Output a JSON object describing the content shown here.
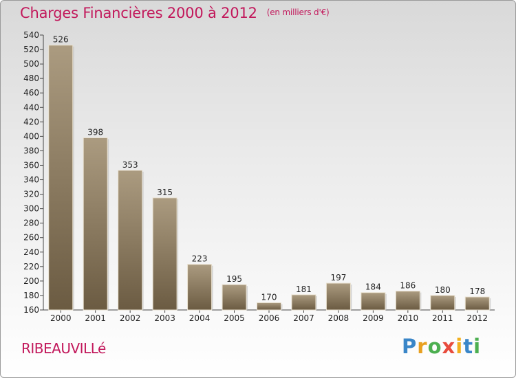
{
  "header": {
    "title": "Charges Financières 2000 à 2012",
    "subtitle": "(en milliers d'€)"
  },
  "footer": {
    "city": "RIBEAUVILLé",
    "logo_letters": [
      "P",
      "r",
      "o",
      "x",
      "i",
      "t",
      "i"
    ],
    "logo_colors": [
      "#3a86c8",
      "#e8a020",
      "#4caf50",
      "#e84c3d",
      "#f2b01e",
      "#3a86c8",
      "#4caf50"
    ]
  },
  "chart_data": {
    "type": "bar",
    "title": "Charges Financières 2000 à 2012",
    "subtitle": "(en milliers d'€)",
    "categories": [
      "2000",
      "2001",
      "2002",
      "2003",
      "2004",
      "2005",
      "2006",
      "2007",
      "2008",
      "2009",
      "2010",
      "2011",
      "2012"
    ],
    "values": [
      526,
      398,
      353,
      315,
      223,
      195,
      170,
      181,
      197,
      184,
      186,
      180,
      178
    ],
    "ylim": [
      160,
      540
    ],
    "yticks": [
      160,
      180,
      200,
      220,
      240,
      260,
      280,
      300,
      320,
      340,
      360,
      380,
      400,
      420,
      440,
      460,
      480,
      500,
      520,
      540
    ],
    "grid": false,
    "bar_color": "#8b7b62"
  }
}
